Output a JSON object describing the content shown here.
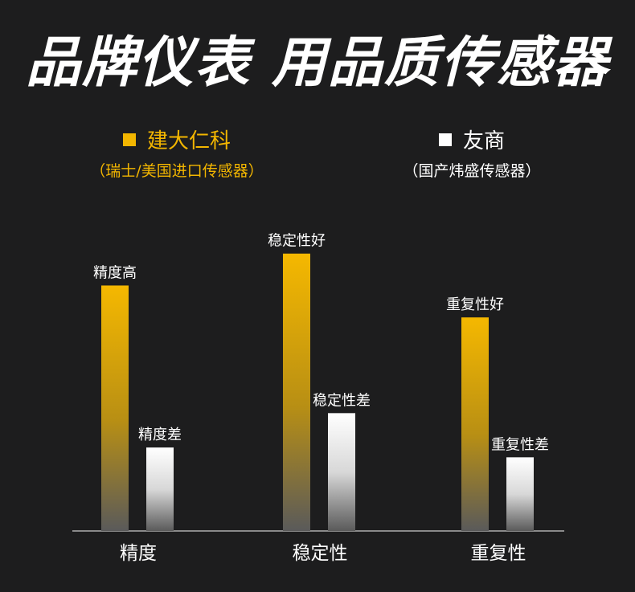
{
  "headline": "品牌仪表 用品质传感器",
  "legend": [
    {
      "label": "建大仁科",
      "note": "（瑞士/美国进口传感器）",
      "color": "#f3b600"
    },
    {
      "label": "友商",
      "note": "（国产炜盛传感器）",
      "color": "#ffffff"
    }
  ],
  "chart_data": {
    "type": "bar",
    "categories": [
      "精度",
      "稳定性",
      "重复性"
    ],
    "series": [
      {
        "name": "建大仁科",
        "values": [
          100,
          113,
          87
        ],
        "color": "#f3b600",
        "labels": [
          "精度高",
          "稳定性好",
          "重复性好"
        ]
      },
      {
        "name": "友商",
        "values": [
          34,
          48,
          30
        ],
        "color": "#ffffff",
        "labels": [
          "精度差",
          "稳定性差",
          "重复性差"
        ]
      }
    ],
    "ylim": [
      0,
      120
    ],
    "grid": false
  }
}
